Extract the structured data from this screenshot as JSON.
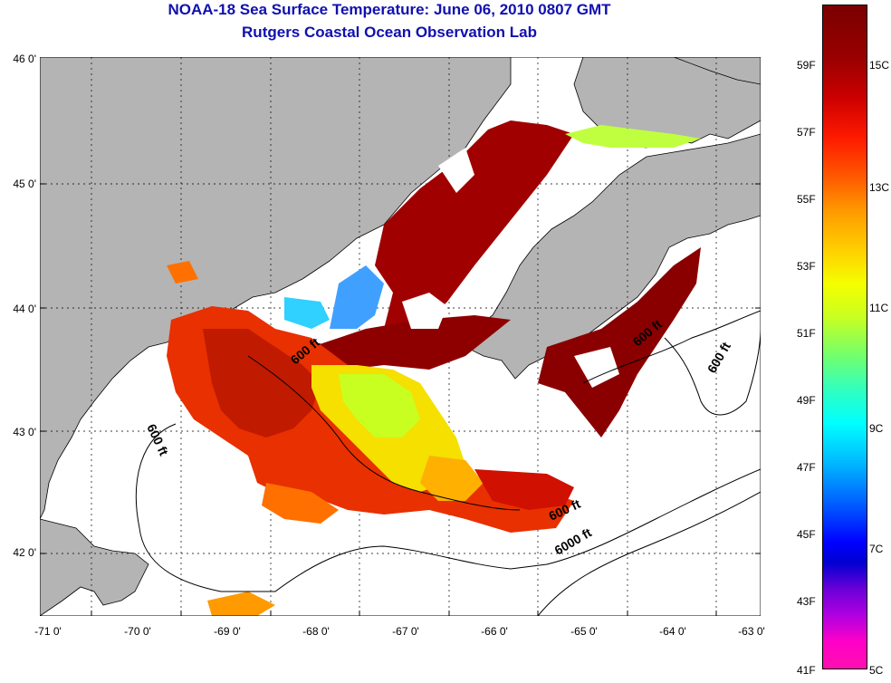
{
  "header": {
    "title": "NOAA-18 Sea Surface Temperature:  June 06, 2010 0807 GMT",
    "subtitle": "Rutgers Coastal Ocean Observation Lab"
  },
  "map": {
    "lat_ticks": [
      "46 0'",
      "45 0'",
      "44 0'",
      "43 0'",
      "42 0'"
    ],
    "lon_ticks": [
      "-71 0'",
      "-70 0'",
      "-69 0'",
      "-68 0'",
      "-67 0'",
      "-66 0'",
      "-65 0'",
      "-64 0'",
      "-63 0'"
    ],
    "contour_labels": [
      "600 ft",
      "600 ft",
      "600 ft",
      "600 ft",
      "600 ft",
      "6000 ft"
    ],
    "colors": {
      "land": "#b4b4b4",
      "ocean_nodata": "#ffffff",
      "title": "#1010b0"
    }
  },
  "colorbar": {
    "fahrenheit": [
      "59F",
      "57F",
      "55F",
      "53F",
      "51F",
      "49F",
      "47F",
      "45F",
      "43F",
      "41F"
    ],
    "celsius": [
      "15C",
      "13C",
      "11C",
      "9C",
      "7C",
      "5C"
    ]
  }
}
